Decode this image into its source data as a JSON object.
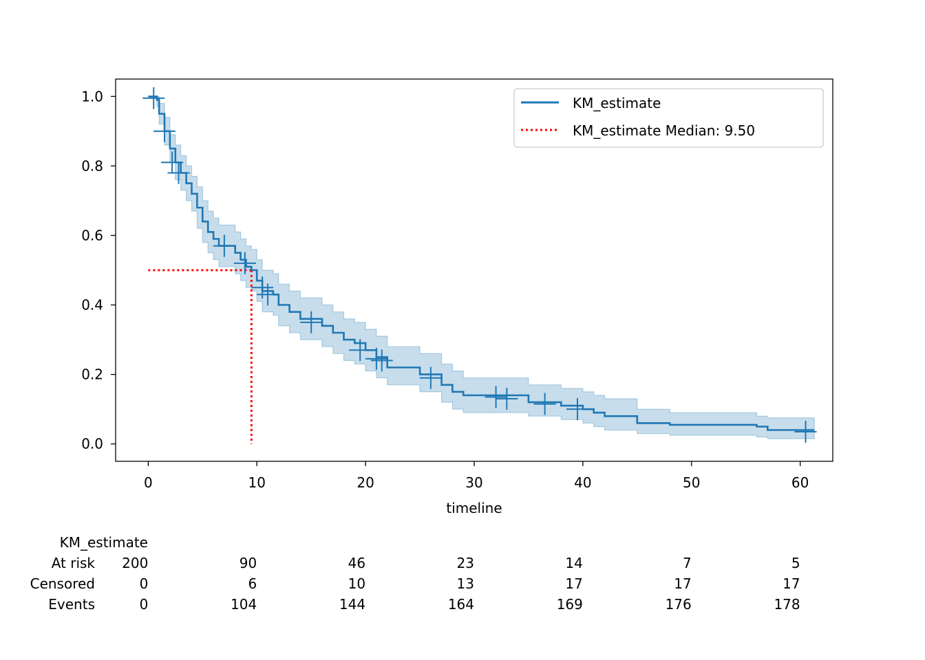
{
  "chart_data": {
    "type": "line",
    "title": "",
    "xlabel": "timeline",
    "ylabel": "",
    "xlim": [
      -3,
      63
    ],
    "ylim": [
      -0.05,
      1.05
    ],
    "xticks": [
      0,
      10,
      20,
      30,
      40,
      50,
      60
    ],
    "yticks": [
      0.0,
      0.2,
      0.4,
      0.6,
      0.8,
      1.0
    ],
    "ytick_labels": [
      "0.0",
      "0.2",
      "0.4",
      "0.6",
      "0.8",
      "1.0"
    ],
    "grid": false,
    "legend_position": "top-right",
    "colors": {
      "estimate": "#1f77b4",
      "band": "#1f77b4",
      "median": "#ff0000"
    },
    "series": [
      {
        "name": "KM_estimate",
        "style": "step",
        "x": [
          0,
          0.8,
          1.0,
          1.5,
          2.0,
          2.5,
          3.0,
          3.5,
          4.0,
          4.5,
          5.0,
          5.5,
          6.0,
          6.5,
          8.0,
          8.5,
          9.0,
          9.5,
          10.0,
          10.5,
          11.5,
          12.0,
          13.0,
          14.0,
          16.0,
          17.0,
          18.0,
          19.0,
          20.0,
          21.0,
          22.0,
          25.0,
          27.0,
          28.0,
          29.0,
          35.0,
          38.0,
          40.0,
          41.0,
          42.0,
          45.0,
          48.0,
          56.0,
          57.0,
          61.3
        ],
        "y": [
          1.0,
          0.99,
          0.95,
          0.9,
          0.85,
          0.81,
          0.78,
          0.75,
          0.72,
          0.68,
          0.64,
          0.61,
          0.59,
          0.57,
          0.55,
          0.53,
          0.51,
          0.5,
          0.47,
          0.44,
          0.43,
          0.4,
          0.38,
          0.36,
          0.34,
          0.32,
          0.3,
          0.29,
          0.27,
          0.25,
          0.22,
          0.2,
          0.17,
          0.15,
          0.14,
          0.12,
          0.11,
          0.1,
          0.09,
          0.08,
          0.06,
          0.055,
          0.05,
          0.04,
          0.04
        ]
      },
      {
        "name": "KM_estimate Median: 9.50",
        "style": "dotted",
        "median_x": 9.5,
        "median_y": 0.5
      }
    ],
    "ci_lower": [
      1.0,
      0.97,
      0.92,
      0.86,
      0.81,
      0.76,
      0.73,
      0.7,
      0.67,
      0.62,
      0.58,
      0.55,
      0.53,
      0.51,
      0.49,
      0.47,
      0.45,
      0.44,
      0.41,
      0.38,
      0.37,
      0.34,
      0.32,
      0.3,
      0.28,
      0.26,
      0.24,
      0.23,
      0.21,
      0.19,
      0.17,
      0.15,
      0.12,
      0.1,
      0.09,
      0.08,
      0.07,
      0.06,
      0.05,
      0.04,
      0.03,
      0.025,
      0.02,
      0.015,
      0.015
    ],
    "ci_upper": [
      1.0,
      1.0,
      0.98,
      0.94,
      0.89,
      0.86,
      0.83,
      0.8,
      0.77,
      0.74,
      0.7,
      0.67,
      0.65,
      0.63,
      0.61,
      0.59,
      0.57,
      0.56,
      0.53,
      0.5,
      0.49,
      0.46,
      0.44,
      0.42,
      0.4,
      0.38,
      0.36,
      0.35,
      0.33,
      0.31,
      0.28,
      0.26,
      0.23,
      0.21,
      0.19,
      0.17,
      0.16,
      0.15,
      0.14,
      0.13,
      0.1,
      0.09,
      0.08,
      0.075,
      0.075
    ],
    "censored": [
      [
        0.5,
        0.995
      ],
      [
        1.5,
        0.9
      ],
      [
        2.2,
        0.81
      ],
      [
        2.8,
        0.78
      ],
      [
        7.0,
        0.57
      ],
      [
        8.9,
        0.52
      ],
      [
        10.5,
        0.45
      ],
      [
        11.0,
        0.43
      ],
      [
        15.0,
        0.35
      ],
      [
        19.5,
        0.27
      ],
      [
        21.0,
        0.245
      ],
      [
        21.5,
        0.24
      ],
      [
        26.0,
        0.19
      ],
      [
        32.0,
        0.135
      ],
      [
        33.0,
        0.13
      ],
      [
        36.5,
        0.115
      ],
      [
        39.5,
        0.1
      ],
      [
        60.5,
        0.035
      ]
    ],
    "at_risk_table": {
      "title": "KM_estimate",
      "times": [
        0,
        10,
        20,
        30,
        40,
        50,
        60
      ],
      "rows": [
        {
          "label": "At risk",
          "values": [
            "200",
            "90",
            "46",
            "23",
            "14",
            "7",
            "5"
          ]
        },
        {
          "label": "Censored",
          "values": [
            "0",
            "6",
            "10",
            "13",
            "17",
            "17",
            "17"
          ]
        },
        {
          "label": "Events",
          "values": [
            "0",
            "104",
            "144",
            "164",
            "169",
            "176",
            "178"
          ]
        }
      ]
    }
  }
}
